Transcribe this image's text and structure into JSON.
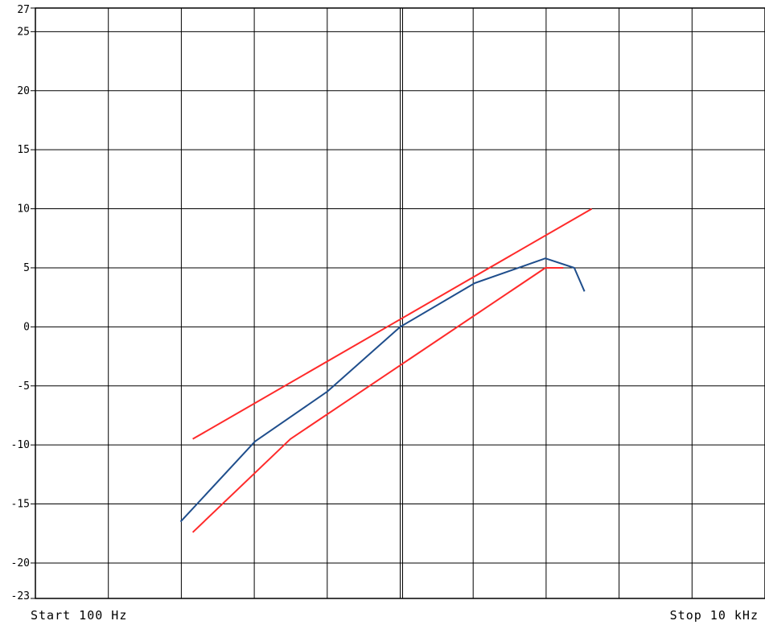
{
  "chart_data": {
    "type": "line",
    "x_scale": "log",
    "xlim": [
      100,
      10000
    ],
    "ylim": [
      -23,
      27
    ],
    "y_ticks": [
      27,
      25,
      20,
      15,
      10,
      5,
      0,
      -5,
      -10,
      -15,
      -20,
      -23
    ],
    "y_tick_labels": [
      "27",
      "25",
      "20",
      "15",
      "10",
      "5",
      "0",
      "-5",
      "-10",
      "-15",
      "-20",
      "-23"
    ],
    "start_label": "Start 100 Hz",
    "stop_label": "Stop 10 kHz",
    "grid": true,
    "legend": "none",
    "series": [
      {
        "color": "#1f4e8c",
        "x": [
          250,
          400,
          630,
          1000,
          1600,
          2500,
          3000,
          3200
        ],
        "y": [
          -16.5,
          -9.7,
          -5.5,
          0,
          3.7,
          5.8,
          5.0,
          3.0
        ]
      },
      {
        "color": "#ff2a2a",
        "x": [
          270,
          3350
        ],
        "y": [
          -9.5,
          10
        ]
      },
      {
        "color": "#ff2a2a",
        "x": [
          270,
          500,
          2500,
          2800
        ],
        "y": [
          -17.4,
          -9.5,
          5.0,
          5.0
        ]
      }
    ]
  }
}
